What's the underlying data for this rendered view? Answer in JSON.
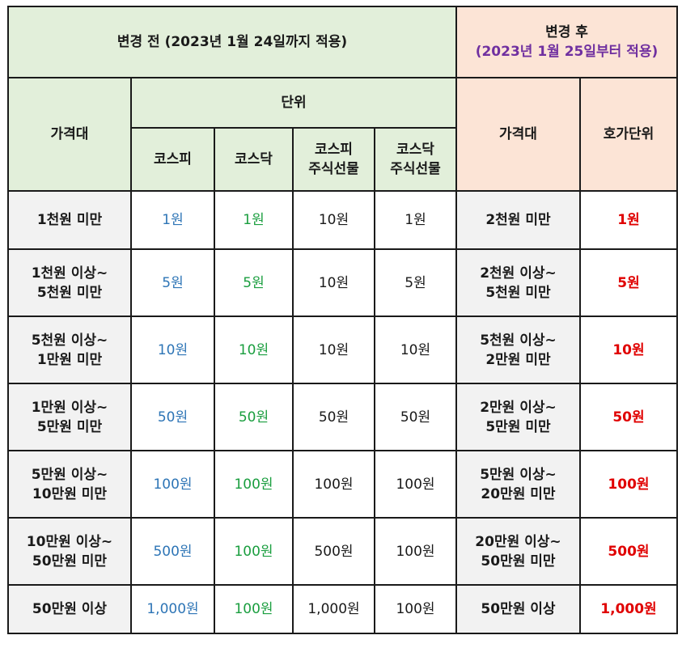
{
  "header": {
    "before_title": "변경 전 (2023년 1월 24일까지 적용)",
    "after_title": "변경 후",
    "after_subtitle": "(2023년 1월 25일부터 적용)",
    "price_range": "가격대",
    "unit": "단위",
    "after_price_range": "가격대",
    "tick_unit": "호가단위",
    "cols": {
      "kospi": "코스피",
      "kosdaq": "코스닥",
      "kospi_futures_1": "코스피",
      "kospi_futures_2": "주식선물",
      "kosdaq_futures_1": "코스닥",
      "kosdaq_futures_2": "주식선물"
    }
  },
  "rows": [
    {
      "range1": "1천원 미만",
      "range2": "",
      "kospi": "1원",
      "kosdaq": "1원",
      "kospi_fut": "10원",
      "kosdaq_fut": "1원",
      "new_range1": "2천원 미만",
      "new_range2": "",
      "new_unit": "1원"
    },
    {
      "range1": "1천원 이상~",
      "range2": "5천원 미만",
      "kospi": "5원",
      "kosdaq": "5원",
      "kospi_fut": "10원",
      "kosdaq_fut": "5원",
      "new_range1": "2천원 이상~",
      "new_range2": "5천원 미만",
      "new_unit": "5원"
    },
    {
      "range1": "5천원 이상~",
      "range2": "1만원 미만",
      "kospi": "10원",
      "kosdaq": "10원",
      "kospi_fut": "10원",
      "kosdaq_fut": "10원",
      "new_range1": "5천원 이상~",
      "new_range2": "2만원 미만",
      "new_unit": "10원"
    },
    {
      "range1": "1만원 이상~",
      "range2": "5만원 미만",
      "kospi": "50원",
      "kosdaq": "50원",
      "kospi_fut": "50원",
      "kosdaq_fut": "50원",
      "new_range1": "2만원 이상~",
      "new_range2": "5만원 미만",
      "new_unit": "50원"
    },
    {
      "range1": "5만원 이상~",
      "range2": "10만원 미만",
      "kospi": "100원",
      "kosdaq": "100원",
      "kospi_fut": "100원",
      "kosdaq_fut": "100원",
      "new_range1": "5만원 이상~",
      "new_range2": "20만원 미만",
      "new_unit": "100원"
    },
    {
      "range1": "10만원 이상~",
      "range2": "50만원 미만",
      "kospi": "500원",
      "kosdaq": "100원",
      "kospi_fut": "500원",
      "kosdaq_fut": "100원",
      "new_range1": "20만원 이상~",
      "new_range2": "50만원 미만",
      "new_unit": "500원"
    },
    {
      "range1": "50만원 이상",
      "range2": "",
      "kospi": "1,000원",
      "kosdaq": "100원",
      "kospi_fut": "1,000원",
      "kosdaq_fut": "100원",
      "new_range1": "50만원 이상",
      "new_range2": "",
      "new_unit": "1,000원"
    }
  ],
  "colors": {
    "header_before_bg": "#e2efda",
    "header_after_bg": "#fce4d6",
    "label_bg": "#f2f2f2",
    "kospi_text": "#2e75b6",
    "kosdaq_text": "#1a9e3f",
    "new_unit_text": "#e00000",
    "after_subtitle_text": "#7030a0"
  }
}
